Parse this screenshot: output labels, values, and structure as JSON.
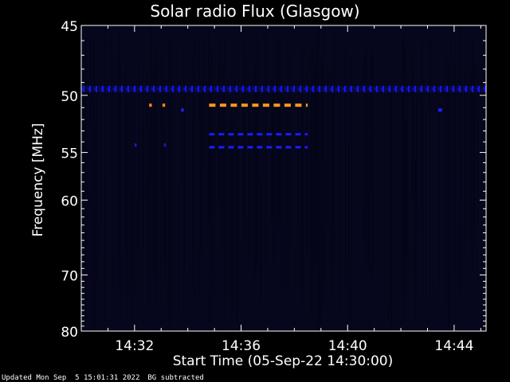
{
  "chart_data": {
    "type": "heatmap",
    "title": "Solar radio Flux (Glasgow)",
    "xlabel": "Start Time (05-Sep-22 14:30:00)",
    "ylabel": "Frequency [MHz]",
    "x_ticks": [
      "14:32",
      "14:36",
      "14:40",
      "14:44"
    ],
    "x_tick_minutes": [
      2,
      6,
      10,
      14
    ],
    "xlim_minutes": [
      0,
      15.2
    ],
    "y_ticks": [
      45,
      50,
      55,
      60,
      70,
      80
    ],
    "ylim_mhz": [
      45,
      80
    ],
    "y_scale": "reciprocal",
    "features": [
      {
        "name": "blue-band-49.5",
        "freq_mhz": 49.5,
        "t_start": 0.0,
        "t_end": 15.2,
        "color": "#1515ff",
        "pattern": "dashed"
      },
      {
        "name": "orange-band-50.8",
        "freq_mhz": 50.8,
        "t_start": 4.8,
        "t_end": 8.5,
        "color": "#ff9a1a",
        "pattern": "dashed"
      },
      {
        "name": "blue-band-53.3",
        "freq_mhz": 53.3,
        "t_start": 4.8,
        "t_end": 8.5,
        "color": "#1c1cff",
        "pattern": "dashed"
      },
      {
        "name": "blue-band-54.5",
        "freq_mhz": 54.5,
        "t_start": 4.8,
        "t_end": 8.5,
        "color": "#1c1cff",
        "pattern": "dashed"
      },
      {
        "name": "orange-blip-1",
        "freq_mhz": 50.8,
        "t_start": 2.55,
        "t_end": 2.65,
        "color": "#ff8a00",
        "pattern": "solid"
      },
      {
        "name": "orange-blip-2",
        "freq_mhz": 50.8,
        "t_start": 3.05,
        "t_end": 3.15,
        "color": "#ff8a00",
        "pattern": "solid"
      },
      {
        "name": "blue-blip-1",
        "freq_mhz": 51.2,
        "t_start": 3.75,
        "t_end": 3.85,
        "color": "#2020ff",
        "pattern": "solid"
      },
      {
        "name": "blue-blip-2",
        "freq_mhz": 51.2,
        "t_start": 13.4,
        "t_end": 13.55,
        "color": "#2020ff",
        "pattern": "solid"
      },
      {
        "name": "blue-blip-3",
        "freq_mhz": 54.3,
        "t_start": 2.0,
        "t_end": 2.08,
        "color": "#1a1acc",
        "pattern": "solid"
      },
      {
        "name": "blue-blip-4",
        "freq_mhz": 54.3,
        "t_start": 3.1,
        "t_end": 3.18,
        "color": "#1a1acc",
        "pattern": "solid"
      }
    ],
    "background_color": "#06061c",
    "axis_color": "#ffffff"
  },
  "footer": {
    "updated": "Updated Mon Sep  5 15:01:31 2022",
    "note": "BG subtracted"
  }
}
